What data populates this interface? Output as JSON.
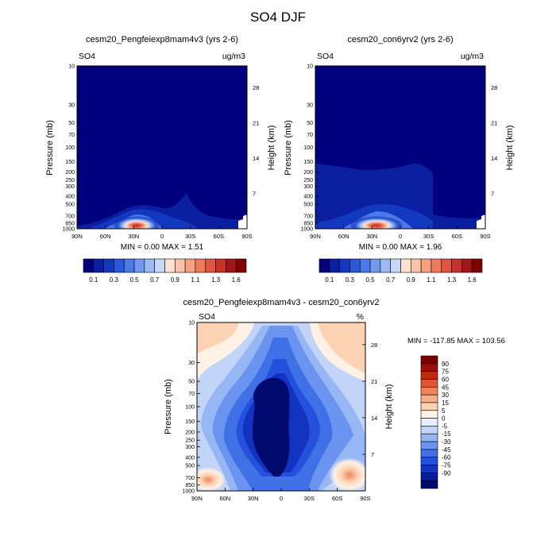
{
  "title": "SO4 DJF",
  "chart_data": [
    {
      "type": "heatmap",
      "title": "cesm20_Pengfeiexp8mam4v3 (yrs 2-6)",
      "left_label": "SO4",
      "right_label": "ug/m3",
      "ylabel": "Pressure (mb)",
      "y2label": "Height (km)",
      "x_ticks": [
        "90N",
        "60N",
        "30N",
        "0",
        "30S",
        "60S",
        "90S"
      ],
      "y_ticks": [
        10,
        30,
        50,
        70,
        100,
        150,
        200,
        250,
        300,
        400,
        500,
        700,
        850,
        1000
      ],
      "y2_ticks": [
        28,
        21,
        14,
        7
      ],
      "xlim": [
        90,
        -90
      ],
      "ylim": [
        1000,
        10
      ],
      "y_scale": "log",
      "stats": "MIN =   0.00   MAX =   1.51",
      "min": 0.0,
      "max": 1.51
    },
    {
      "type": "heatmap",
      "title": "cesm20_con6yrv2 (yrs 2-6)",
      "left_label": "SO4",
      "right_label": "ug/m3",
      "ylabel": "Pressure (mb)",
      "y2label": "Height (km)",
      "x_ticks": [
        "90N",
        "60N",
        "30N",
        "0",
        "30S",
        "60S",
        "90S"
      ],
      "y_ticks": [
        10,
        30,
        50,
        70,
        100,
        150,
        200,
        250,
        300,
        400,
        500,
        700,
        850,
        1000
      ],
      "y2_ticks": [
        28,
        21,
        14,
        7
      ],
      "xlim": [
        90,
        -90
      ],
      "ylim": [
        1000,
        10
      ],
      "y_scale": "log",
      "stats": "MIN =   0.00   MAX =   1.96",
      "min": 0.0,
      "max": 1.96
    },
    {
      "type": "heatmap",
      "title": "cesm20_Pengfeiexp8mam4v3 - cesm20_con6yrv2",
      "left_label": "SO4",
      "right_label": "%",
      "ylabel": "Pressure (mb)",
      "y2label": "Height (km)",
      "x_ticks": [
        "90N",
        "60N",
        "30N",
        "0",
        "30S",
        "60S",
        "90S"
      ],
      "y_ticks": [
        10,
        30,
        50,
        70,
        100,
        150,
        200,
        250,
        300,
        400,
        500,
        700,
        850,
        1000
      ],
      "y2_ticks": [
        28,
        21,
        14,
        7
      ],
      "xlim": [
        90,
        -90
      ],
      "ylim": [
        1000,
        10
      ],
      "y_scale": "log",
      "stats": "MIN = -117.85  MAX = 103.56",
      "min": -117.85,
      "max": 103.56
    }
  ],
  "colorbar_abs": {
    "colors": [
      "#00007f",
      "#0a1ea0",
      "#1338c0",
      "#2a58d8",
      "#4a7ae8",
      "#7099f0",
      "#9bb9f5",
      "#c6d8fa",
      "#fbe2d2",
      "#fbc4a8",
      "#f6a182",
      "#ee7a5e",
      "#df5540",
      "#c5322a",
      "#a2161a",
      "#800000"
    ],
    "labels": [
      "0.1",
      "0.3",
      "0.5",
      "0.7",
      "0.9",
      "1.1",
      "1.3",
      "1.6"
    ]
  },
  "colorbar_diff": {
    "colors": [
      "#000a6e",
      "#081c9e",
      "#1232c2",
      "#2450dc",
      "#4070e6",
      "#6a94ef",
      "#96b6f4",
      "#c2d5f8",
      "#e6effb",
      "#fff2e5",
      "#fbd3b4",
      "#f8ae88",
      "#f2845a",
      "#e35530",
      "#c4290f",
      "#9a0f08",
      "#7a0000"
    ],
    "labels": [
      "-90",
      "-75",
      "-60",
      "-45",
      "-30",
      "-15",
      "-5",
      "0",
      "5",
      "15",
      "30",
      "45",
      "60",
      "75",
      "90"
    ]
  }
}
